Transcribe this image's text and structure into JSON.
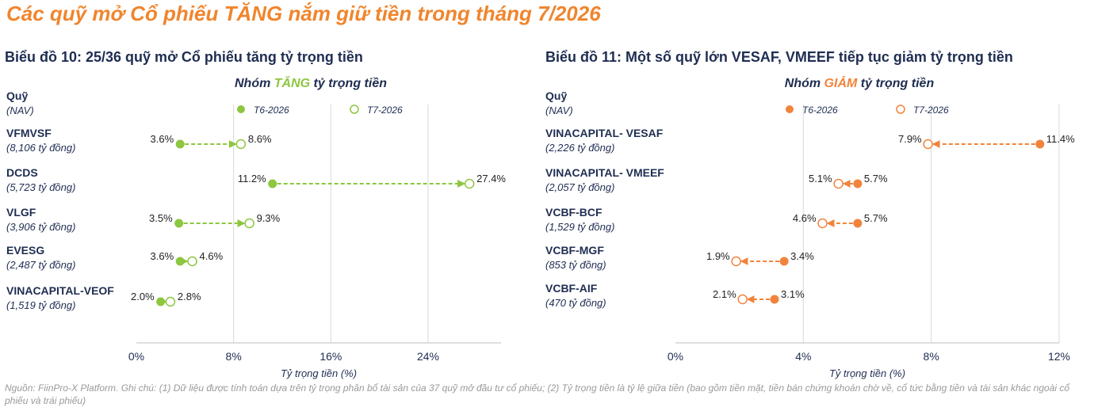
{
  "page_title": "Các quỹ mở Cổ phiếu TĂNG nắm giữ tiền trong tháng 7/2026",
  "source_note": "Nguồn: FiinPro-X Platform. Ghi chú: (1) Dữ liệu được tính toán dựa trên tỷ trọng phân bổ tài sản của 37 quỹ mở đầu tư cổ phiếu; (2) Tỷ trọng tiền là tỷ lệ giữa tiền (bao gồm tiền mặt, tiền bán chứng khoán chờ về, cổ tức bằng tiền và tài sản khác ngoài cổ phiếu và trái phiếu)",
  "colors": {
    "title_orange": "#f0852d",
    "navy": "#1f2d52",
    "green": "#8dc63f",
    "orange": "#f0843c",
    "grid": "#d9d9d9"
  },
  "chart_data": [
    {
      "type": "dumbbell",
      "title": "Biểu đồ 10: 25/36 quỹ mở Cổ phiếu tăng tỷ trọng tiền",
      "group_prefix": "Nhóm ",
      "group_word": "TĂNG",
      "group_suffix": " tỷ trọng tiền",
      "fund_header": "Quỹ",
      "fund_header_sub": "(NAV)",
      "legend": [
        "T6-2026",
        "T7-2026"
      ],
      "xlabel": "Tỷ trọng tiền (%)",
      "xlim": [
        0,
        30
      ],
      "xticks": [
        "0%",
        "8%",
        "16%",
        "24%"
      ],
      "xtick_values": [
        0,
        8,
        16,
        24
      ],
      "funds": [
        {
          "name": "VFMVSF",
          "nav": "(8,106 tỷ đồng)",
          "t6": 3.6,
          "t7": 8.6,
          "t6_label": "3.6%",
          "t7_label": "8.6%"
        },
        {
          "name": "DCDS",
          "nav": "(5,723 tỷ đồng)",
          "t6": 11.2,
          "t7": 27.4,
          "t6_label": "11.2%",
          "t7_label": "27.4%"
        },
        {
          "name": "VLGF",
          "nav": "(3,906 tỷ đồng)",
          "t6": 3.5,
          "t7": 9.3,
          "t6_label": "3.5%",
          "t7_label": "9.3%"
        },
        {
          "name": "EVESG",
          "nav": "(2,487 tỷ đồng)",
          "t6": 3.6,
          "t7": 4.6,
          "t6_label": "3.6%",
          "t7_label": "4.6%"
        },
        {
          "name": "VINACAPITAL-VEOF",
          "nav": "(1,519 tỷ đồng)",
          "t6": 2.0,
          "t7": 2.8,
          "t6_label": "2.0%",
          "t7_label": "2.8%"
        }
      ]
    },
    {
      "type": "dumbbell",
      "title": "Biểu đồ 11: Một số quỹ lớn VESAF, VMEEF tiếp tục giảm tỷ trọng tiền",
      "group_prefix": "Nhóm ",
      "group_word": "GIẢM",
      "group_suffix": " tỷ trọng tiền",
      "fund_header": "Quỹ",
      "fund_header_sub": "(NAV)",
      "legend": [
        "T6-2026",
        "T7-2026"
      ],
      "xlabel": "Tỷ trọng tiền (%)",
      "xlim": [
        0,
        12
      ],
      "xticks": [
        "0%",
        "4%",
        "8%",
        "12%"
      ],
      "xtick_values": [
        0,
        4,
        8,
        12
      ],
      "funds": [
        {
          "name": "VINACAPITAL- VESAF",
          "nav": "(2,226 tỷ đồng)",
          "t6": 11.4,
          "t7": 7.9,
          "t6_label": "11.4%",
          "t7_label": "7.9%"
        },
        {
          "name": "VINACAPITAL- VMEEF",
          "nav": "(2,057 tỷ đồng)",
          "t6": 5.7,
          "t7": 5.1,
          "t6_label": "5.7%",
          "t7_label": "5.1%"
        },
        {
          "name": "VCBF-BCF",
          "nav": "(1,529 tỷ đồng)",
          "t6": 5.7,
          "t7": 4.6,
          "t6_label": "5.7%",
          "t7_label": "4.6%"
        },
        {
          "name": "VCBF-MGF",
          "nav": "(853 tỷ đồng)",
          "t6": 3.4,
          "t7": 1.9,
          "t6_label": "3.4%",
          "t7_label": "1.9%"
        },
        {
          "name": "VCBF-AIF",
          "nav": "(470 tỷ đồng)",
          "t6": 3.1,
          "t7": 2.1,
          "t6_label": "3.1%",
          "t7_label": "2.1%"
        }
      ]
    }
  ]
}
